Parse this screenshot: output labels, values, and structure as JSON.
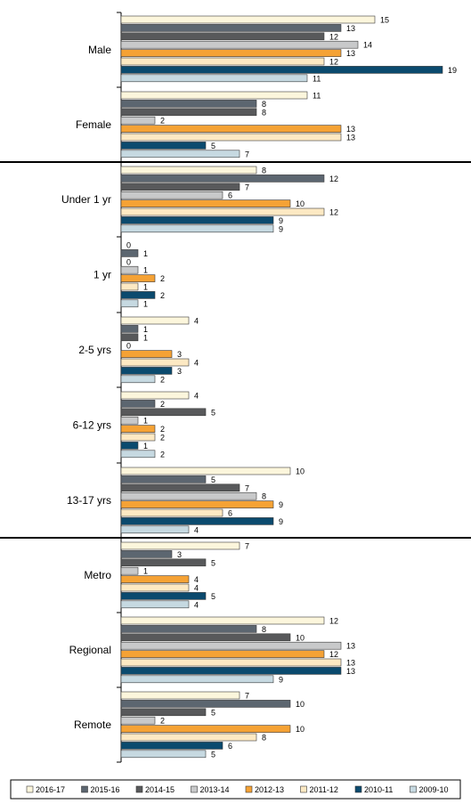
{
  "chart_data": {
    "type": "bar",
    "orientation": "horizontal",
    "categories": [
      "Male",
      "Female",
      "Under 1 yr",
      "1 yr",
      "2-5 yrs",
      "6-12 yrs",
      "13-17 yrs",
      "Metro",
      "Regional",
      "Remote"
    ],
    "group_separators_after": [
      "Female",
      "13-17 yrs"
    ],
    "series": [
      {
        "name": "2016-17",
        "color": "#fcf6dc",
        "values": [
          15,
          11,
          8,
          0,
          4,
          4,
          10,
          7,
          12,
          7
        ]
      },
      {
        "name": "2015-16",
        "color": "#5c6670",
        "values": [
          13,
          8,
          12,
          1,
          1,
          2,
          5,
          3,
          8,
          10
        ]
      },
      {
        "name": "2014-15",
        "color": "#58595b",
        "values": [
          12,
          8,
          7,
          0,
          1,
          5,
          7,
          5,
          10,
          5
        ]
      },
      {
        "name": "2013-14",
        "color": "#c8c9ca",
        "values": [
          14,
          2,
          6,
          1,
          0,
          1,
          8,
          1,
          13,
          2
        ]
      },
      {
        "name": "2012-13",
        "color": "#f5a235",
        "values": [
          13,
          13,
          10,
          2,
          3,
          2,
          9,
          4,
          12,
          10
        ]
      },
      {
        "name": "2011-12",
        "color": "#fde9c3",
        "values": [
          12,
          13,
          12,
          1,
          4,
          2,
          6,
          4,
          13,
          8
        ]
      },
      {
        "name": "2010-11",
        "color": "#0b4a6e",
        "values": [
          19,
          5,
          9,
          2,
          3,
          1,
          9,
          5,
          13,
          6
        ]
      },
      {
        "name": "2009-10",
        "color": "#c6d9e1",
        "values": [
          11,
          7,
          9,
          1,
          2,
          2,
          4,
          4,
          9,
          5
        ]
      }
    ],
    "xlim": [
      0,
      19
    ],
    "grid": false,
    "legend": {
      "placement": "bottom"
    }
  }
}
